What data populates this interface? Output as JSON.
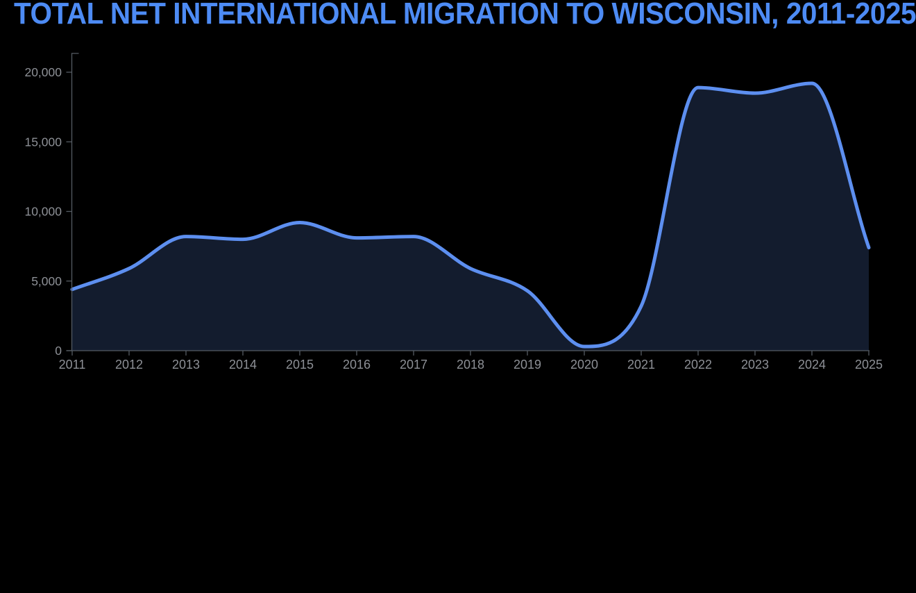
{
  "title": {
    "text": "TOTAL NET INTERNATIONAL MIGRATION TO WISCONSIN, 2011-2025",
    "color": "#4d8bf4"
  },
  "chart_data": {
    "type": "area",
    "title": "TOTAL NET INTERNATIONAL MIGRATION TO WISCONSIN, 2011-2025",
    "categories": [
      "2011",
      "2012",
      "2013",
      "2014",
      "2015",
      "2016",
      "2017",
      "2018",
      "2019",
      "2020",
      "2021",
      "2022",
      "2023",
      "2024",
      "2025"
    ],
    "values": [
      4400,
      5900,
      8200,
      8000,
      9200,
      8100,
      8200,
      5900,
      4300,
      300,
      3200,
      18900,
      18500,
      19200,
      7400
    ],
    "xlabel": "",
    "ylabel": "",
    "ylim": [
      0,
      21350
    ],
    "y_ticks": [
      {
        "value": 0,
        "label": "0"
      },
      {
        "value": 5000,
        "label": "5,000"
      },
      {
        "value": 10000,
        "label": "10,000"
      },
      {
        "value": 15000,
        "label": "15,000"
      },
      {
        "value": 20000,
        "label": "20,000"
      }
    ],
    "grid": false,
    "legend": "none",
    "colors": {
      "background": "#000000",
      "line": "#5d8ff0",
      "fill": "#131c2e",
      "axis": "#555b63",
      "tick_label": "#8d9096",
      "title": "#4d8bf4"
    }
  }
}
